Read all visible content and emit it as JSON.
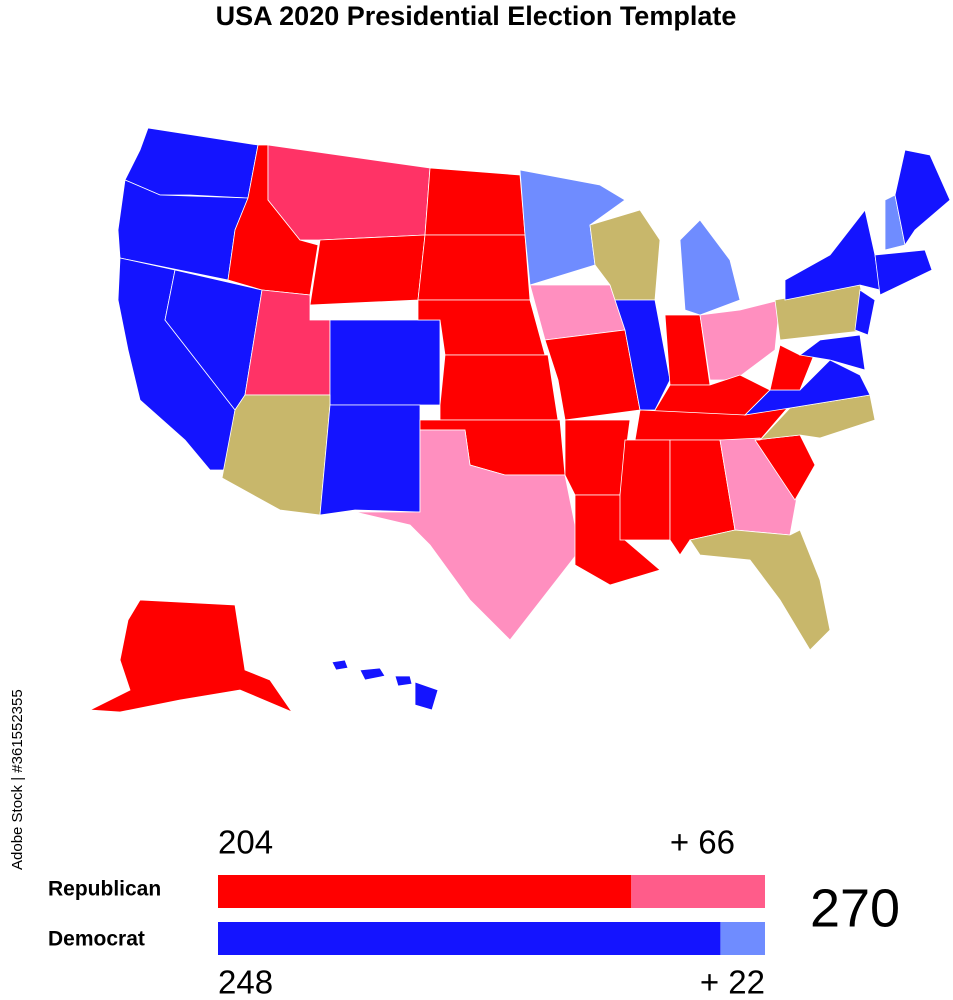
{
  "header": {
    "title": "USA 2020 Presidential Election Template"
  },
  "tally": {
    "target": 270,
    "parties": [
      {
        "name": "Republican",
        "solid": 204,
        "lean": 66,
        "lean_label": "+ 66",
        "solid_color": "#ff0000",
        "lean_color": "#ff5c8a"
      },
      {
        "name": "Democrat",
        "solid": 248,
        "lean": 22,
        "lean_label": "+ 22",
        "solid_color": "#1414ff",
        "lean_color": "#6f8cff"
      }
    ]
  },
  "watermark": "Adobe Stock | #361552355"
}
